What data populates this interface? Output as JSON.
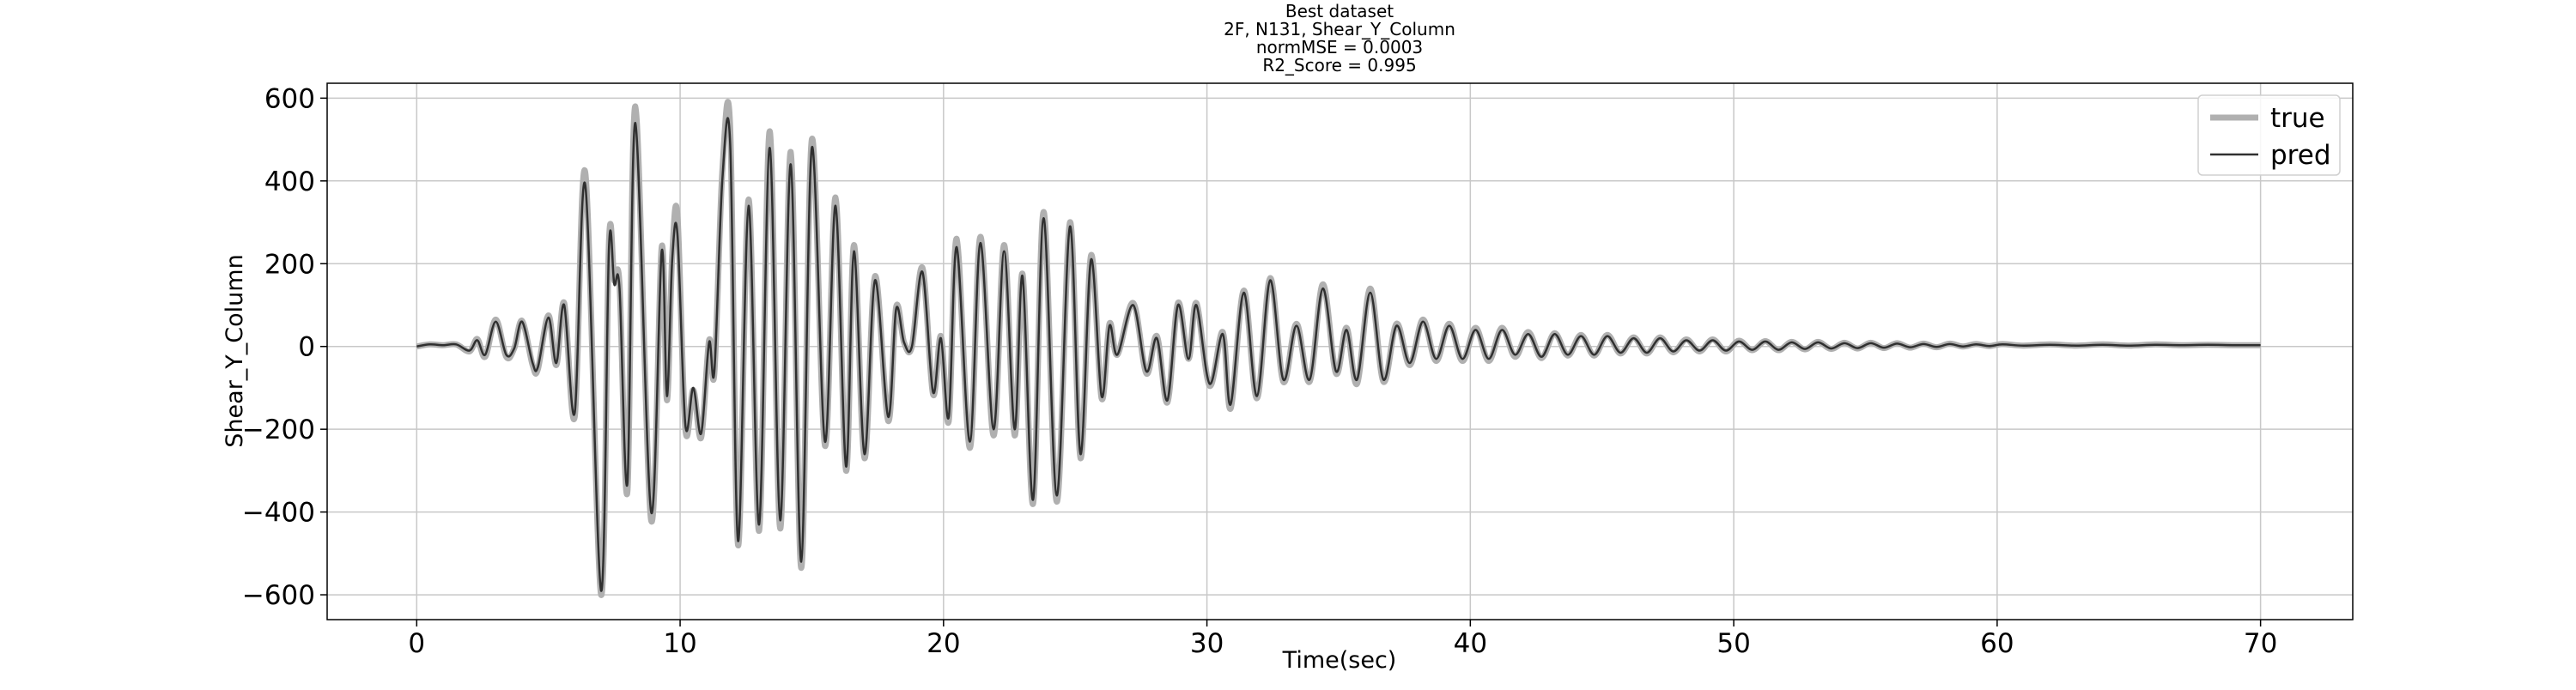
{
  "chart_data": {
    "type": "line",
    "title": [
      "Best dataset",
      "2F, N131, Shear_Y_Column",
      "normMSE = 0.0003",
      "R2_Score = 0.995"
    ],
    "x_label": "Time(sec)",
    "y_label": "Shear_Y_Column",
    "xlim": [
      -3.4,
      73.5
    ],
    "ylim": [
      -660,
      636
    ],
    "xticks": [
      0,
      10,
      20,
      30,
      40,
      50,
      60,
      70
    ],
    "yticks": [
      {
        "value": -600,
        "label": "−600"
      },
      {
        "value": -400,
        "label": "−400"
      },
      {
        "value": -200,
        "label": "−200"
      },
      0,
      200,
      400,
      600
    ],
    "grid": true,
    "legend": "upper right",
    "x": [
      0,
      0.5,
      1,
      1.5,
      2,
      2.3,
      2.6,
      3,
      3.4,
      3.7,
      4,
      4.4,
      4.6,
      5,
      5.3,
      5.6,
      6,
      6.4,
      7,
      7.3,
      7.5,
      7.7,
      8,
      8.3,
      8.9,
      9.3,
      9.5,
      9.7,
      9.9,
      10.2,
      10.5,
      10.8,
      11.1,
      11.3,
      11.6,
      11.9,
      12.2,
      12.6,
      13,
      13.4,
      13.8,
      14.2,
      14.6,
      15,
      15.5,
      15.9,
      16.3,
      16.6,
      17,
      17.4,
      17.9,
      18.2,
      18.5,
      18.8,
      19.2,
      19.6,
      19.9,
      20.2,
      20.5,
      21,
      21.4,
      21.9,
      22.3,
      22.7,
      23,
      23.4,
      23.8,
      24.3,
      24.8,
      25.2,
      25.6,
      26,
      26.3,
      26.6,
      27.2,
      27.7,
      28.1,
      28.5,
      28.9,
      29.3,
      29.6,
      30.1,
      30.6,
      30.9,
      31.4,
      31.9,
      32.4,
      32.9,
      33.4,
      33.9,
      34.4,
      34.9,
      35.3,
      35.7,
      36.2,
      36.7,
      37.2,
      37.7,
      38.2,
      38.7,
      39.2,
      39.7,
      40.2,
      40.7,
      41.2,
      41.7,
      42.2,
      42.7,
      43.2,
      43.7,
      44.2,
      44.7,
      45.2,
      45.7,
      46.2,
      46.7,
      47.2,
      47.7,
      48.2,
      48.7,
      49.2,
      49.7,
      50.2,
      50.7,
      51.2,
      51.7,
      52.2,
      52.7,
      53.2,
      53.7,
      54.2,
      54.7,
      55.2,
      55.7,
      56.2,
      56.7,
      57.2,
      57.7,
      58.2,
      58.7,
      59.2,
      59.7,
      60.2,
      61,
      62,
      63,
      64,
      65,
      66,
      67,
      68,
      69,
      70
    ],
    "series": [
      {
        "name": "true",
        "color": "#b0b0b0",
        "values": [
          0,
          5,
          3,
          5,
          -12,
          18,
          -25,
          65,
          -25,
          -5,
          62,
          -45,
          -55,
          75,
          -45,
          105,
          -170,
          420,
          -600,
          255,
          160,
          150,
          -350,
          580,
          -420,
          240,
          -130,
          220,
          315,
          -200,
          -105,
          -220,
          15,
          -65,
          420,
          530,
          -480,
          355,
          -445,
          520,
          -440,
          470,
          -535,
          500,
          -240,
          360,
          -300,
          245,
          -270,
          170,
          -180,
          95,
          10,
          0,
          190,
          -115,
          25,
          -180,
          260,
          -245,
          265,
          -215,
          245,
          -215,
          175,
          -380,
          325,
          -375,
          300,
          -270,
          220,
          -125,
          55,
          -20,
          105,
          -65,
          25,
          -135,
          105,
          -30,
          105,
          -95,
          35,
          -150,
          135,
          -125,
          165,
          -85,
          55,
          -85,
          150,
          -65,
          45,
          -90,
          140,
          -85,
          55,
          -45,
          65,
          -35,
          55,
          -35,
          45,
          -35,
          45,
          -25,
          35,
          -28,
          32,
          -22,
          28,
          -22,
          28,
          -17,
          22,
          -17,
          22,
          -14,
          17,
          -12,
          17,
          -12,
          14,
          -9,
          13,
          -9,
          11,
          -7,
          11,
          -6,
          9,
          -5,
          9,
          -4,
          8,
          -3,
          7,
          -2,
          7,
          0,
          6,
          1,
          6,
          2,
          5,
          2,
          5,
          2,
          5,
          3,
          4,
          3,
          3
        ]
      },
      {
        "name": "pred",
        "color": "#303030",
        "values": [
          0,
          5,
          3,
          5,
          -10,
          15,
          -20,
          60,
          -20,
          -5,
          60,
          -40,
          -50,
          70,
          -40,
          100,
          -160,
          390,
          -590,
          240,
          150,
          140,
          -330,
          540,
          -400,
          230,
          -120,
          210,
          270,
          -190,
          -100,
          -210,
          10,
          -60,
          400,
          490,
          -470,
          340,
          -430,
          480,
          -420,
          440,
          -520,
          480,
          -230,
          340,
          -290,
          230,
          -260,
          160,
          -170,
          90,
          10,
          0,
          180,
          -110,
          20,
          -170,
          240,
          -230,
          250,
          -200,
          230,
          -200,
          170,
          -370,
          310,
          -360,
          290,
          -260,
          210,
          -120,
          50,
          -20,
          100,
          -60,
          20,
          -130,
          100,
          -30,
          100,
          -90,
          30,
          -140,
          130,
          -120,
          160,
          -80,
          50,
          -80,
          140,
          -60,
          40,
          -80,
          130,
          -80,
          50,
          -40,
          60,
          -30,
          50,
          -30,
          40,
          -30,
          40,
          -20,
          30,
          -25,
          30,
          -20,
          25,
          -20,
          25,
          -15,
          20,
          -15,
          20,
          -12,
          15,
          -10,
          15,
          -10,
          12,
          -8,
          12,
          -8,
          10,
          -6,
          10,
          -5,
          8,
          -4,
          8,
          -3,
          7,
          -2,
          6,
          -1,
          6,
          0,
          5,
          1,
          5,
          2,
          4,
          2,
          4,
          2,
          4,
          3,
          4,
          3,
          3
        ]
      }
    ]
  }
}
